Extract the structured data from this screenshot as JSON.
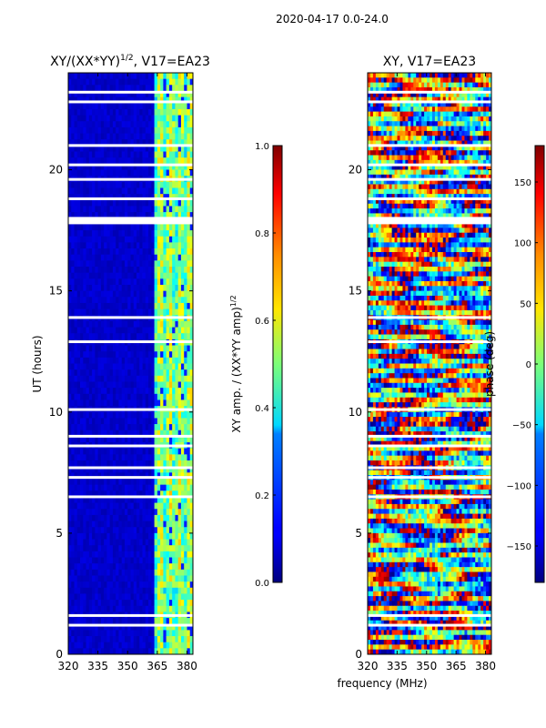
{
  "figure": {
    "suptitle": "2020-04-17 0.0-24.0",
    "xlabel_shared": "frequency (MHz)"
  },
  "chart_data": [
    {
      "type": "heatmap",
      "title_main": "XY/(XX*YY)",
      "title_sup": "1/2",
      "title_tail": ", V17=EA23",
      "xlabel": "",
      "ylabel": "UT (hours)",
      "xlim": [
        320,
        383
      ],
      "ylim": [
        0,
        24
      ],
      "xticks": [
        320,
        335,
        350,
        365,
        380
      ],
      "yticks": [
        0,
        5,
        10,
        15,
        20
      ],
      "colorbar": {
        "label_main": "XY amp. / (XX*YY amp)",
        "label_sup": "1/2",
        "range": [
          0.0,
          1.0
        ],
        "ticks": [
          "0.0",
          "0.2",
          "0.4",
          "0.6",
          "0.8",
          "1.0"
        ],
        "tick_values": [
          0.0,
          0.2,
          0.4,
          0.6,
          0.8,
          1.0
        ],
        "colormap": "jet"
      },
      "description_values": {
        "low_band_mhz": [
          320,
          363
        ],
        "low_band_level": 0.05,
        "high_band_mhz": [
          363,
          383
        ],
        "high_band_level_range": [
          0.3,
          0.7
        ]
      },
      "blank_rows_ut": [
        1.2,
        1.6,
        6.5,
        7.3,
        7.7,
        8.6,
        9.0,
        10.1,
        12.9,
        13.9,
        17.9,
        18.8,
        19.6,
        20.2,
        21.0,
        22.8,
        23.2
      ]
    },
    {
      "type": "heatmap",
      "title_main": "XY, V17=EA23",
      "xlabel": "frequency (MHz)",
      "ylabel": "",
      "xlim": [
        320,
        383
      ],
      "ylim": [
        0,
        24
      ],
      "xticks": [
        320,
        335,
        350,
        365,
        380
      ],
      "yticks": [
        0,
        5,
        10,
        15,
        20
      ],
      "colorbar": {
        "label_main": "phase (deg)",
        "range": [
          -180,
          180
        ],
        "ticks": [
          "−150",
          "−100",
          "−50",
          "0",
          "50",
          "100",
          "150"
        ],
        "tick_values": [
          -150,
          -100,
          -50,
          0,
          50,
          100,
          150
        ],
        "colormap": "jet"
      },
      "blank_rows_ut": [
        1.2,
        1.6,
        6.5,
        7.3,
        7.7,
        8.6,
        9.0,
        10.1,
        12.9,
        13.9,
        17.9,
        18.8,
        19.6,
        20.2,
        21.0,
        22.8,
        23.2
      ]
    }
  ]
}
